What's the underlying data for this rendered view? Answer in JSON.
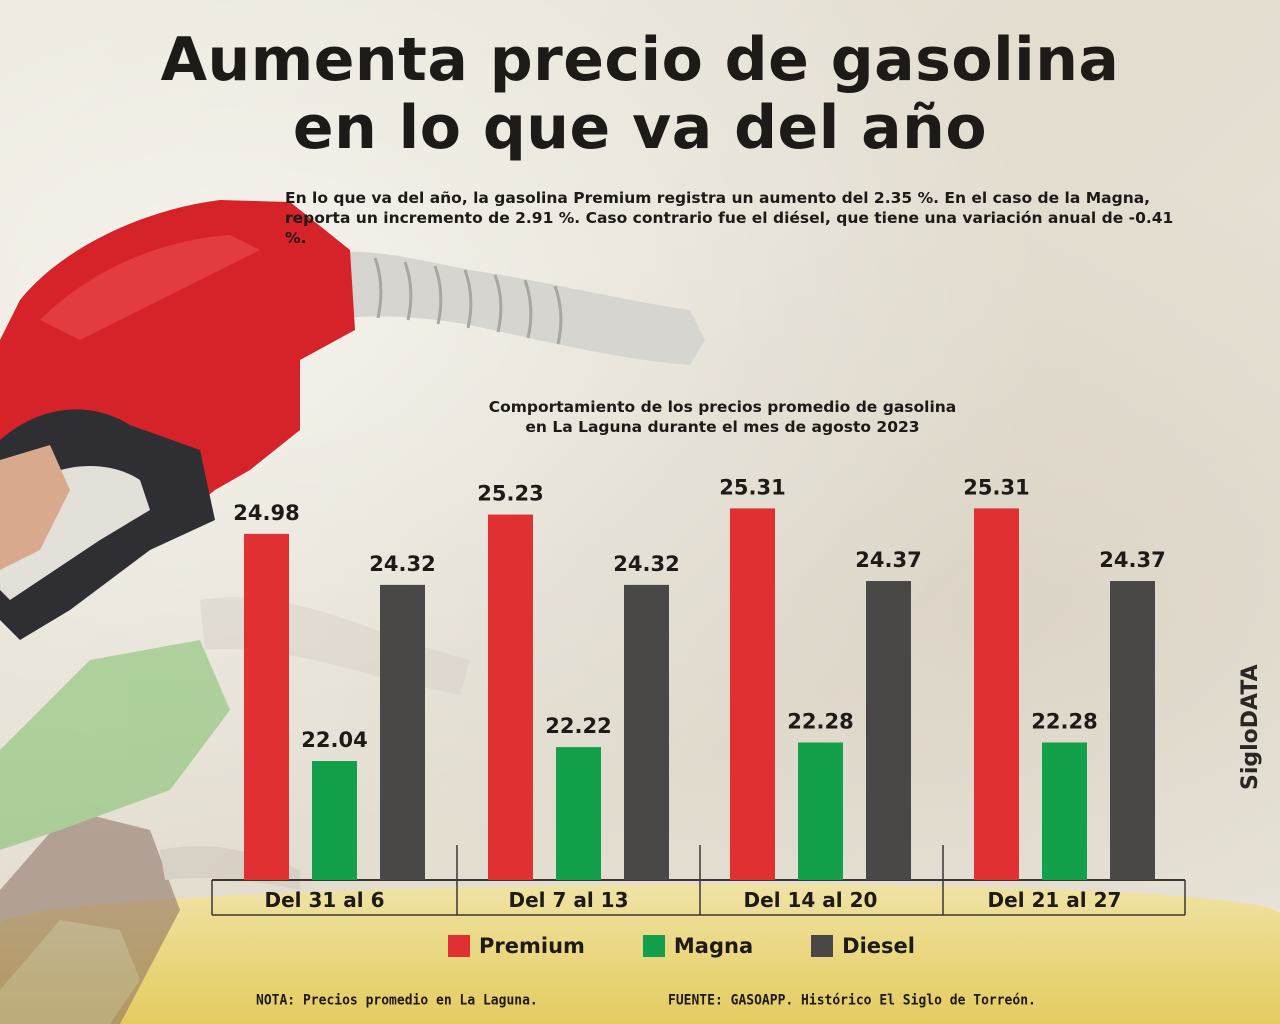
{
  "headline": {
    "line1": "Aumenta precio de gasolina",
    "line2": "en lo que va del año"
  },
  "subtitle": "En lo que va del año, la gasolina Premium registra un aumento del 2.35 %. En el caso de la Magna, reporta un incremento de 2.91 %. Caso contrario fue el diésel, que tiene una variación anual de -0.41 %.",
  "chart_data": {
    "type": "bar",
    "title_line1": "Comportamiento de los precios promedio de gasolina",
    "title_line2": "en La Laguna durante el mes de agosto 2023",
    "categories": [
      "Del 31 al 6",
      "Del 7 al 13",
      "Del 14 al 20",
      "Del 21 al 27"
    ],
    "series": [
      {
        "name": "Premium",
        "color": "#e03032",
        "values": [
          24.98,
          25.23,
          25.31,
          25.31
        ]
      },
      {
        "name": "Magna",
        "color": "#12a04a",
        "values": [
          22.04,
          22.22,
          22.28,
          22.28
        ]
      },
      {
        "name": "Diesel",
        "color": "#4a4846",
        "values": [
          24.32,
          24.32,
          24.37,
          24.37
        ]
      }
    ],
    "value_labels": [
      [
        "24.98",
        "22.04",
        "24.32"
      ],
      [
        "25.23",
        "22.22",
        "24.32"
      ],
      [
        "25.31",
        "22.28",
        "24.37"
      ],
      [
        "25.31",
        "22.28",
        "24.37"
      ]
    ],
    "ylim": [
      0,
      26
    ],
    "grid": false,
    "legend_position": "bottom"
  },
  "footer": {
    "note": "NOTA: Precios promedio en La Laguna.",
    "source": "FUENTE: GASOAPP. Histórico El Siglo de Torreón."
  },
  "brand": "SigloDATA"
}
